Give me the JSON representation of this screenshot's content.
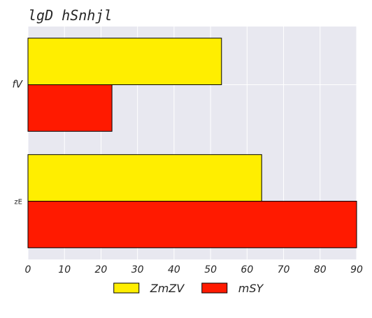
{
  "chart_data": {
    "type": "bar",
    "orientation": "horizontal",
    "title": "lgD hSnhjl",
    "categories": [
      "fV",
      "zE"
    ],
    "series": [
      {
        "name": "ZmZV",
        "values": [
          53,
          64
        ],
        "color": "#ffee00"
      },
      {
        "name": "mSY",
        "values": [
          23,
          90
        ],
        "color": "#ff1a00"
      }
    ],
    "xlim": [
      0,
      90
    ],
    "xticks": [
      0,
      10,
      20,
      30,
      40,
      50,
      60,
      70,
      80,
      90
    ],
    "grid": true,
    "legend_position": "bottom-center",
    "background_color": "#e8e8f0",
    "grid_color": "#ffffff",
    "text_color": "#262626"
  }
}
